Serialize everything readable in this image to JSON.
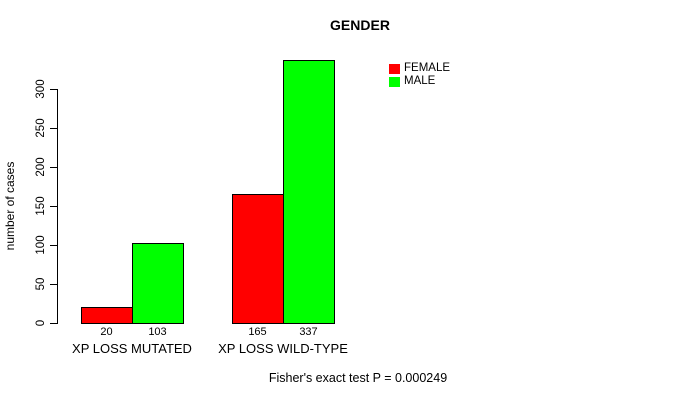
{
  "window": {
    "background": "#FFFFFF"
  },
  "chart_data": {
    "type": "bar",
    "title": "GENDER",
    "xlabel": "",
    "ylabel": "number of cases",
    "ylim": [
      0,
      345
    ],
    "yticks": [
      0,
      50,
      100,
      150,
      200,
      250,
      300
    ],
    "grid": false,
    "categories": [
      "XP LOSS MUTATED",
      "XP LOSS WILD-TYPE"
    ],
    "series": [
      {
        "name": "FEMALE",
        "color": "#FF0000",
        "values": [
          20,
          165
        ]
      },
      {
        "name": "MALE",
        "color": "#00FF00",
        "values": [
          103,
          337
        ]
      }
    ],
    "bar_value_labels": [
      [
        "20",
        "165"
      ],
      [
        "103",
        "337"
      ]
    ],
    "legend": {
      "position": "top-right",
      "entries": [
        {
          "label": "FEMALE",
          "color": "#FF0000"
        },
        {
          "label": "MALE",
          "color": "#00FF00"
        }
      ]
    },
    "annotation": "Fisher's exact test P = 0.000249"
  }
}
